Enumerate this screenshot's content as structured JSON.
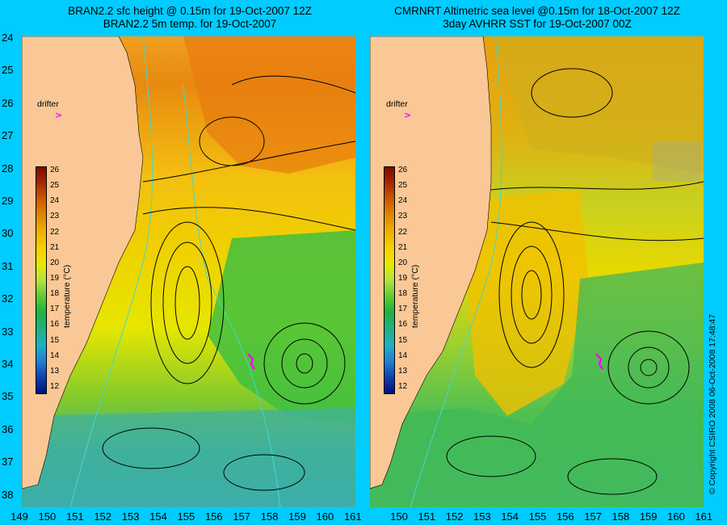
{
  "titles": {
    "left_line1": "BRAN2.2 sfc height @ 0.15m for 19-Oct-2007 12Z",
    "left_line2": "BRAN2.2 5m temp. for 19-Oct-2007",
    "right_line1": "CMRNRT Altimetric sea level  @0.15m  for 18-Oct-2007 12Z",
    "right_line2": "3day AVHRR SST for 19-Oct-2007 00Z"
  },
  "lat_ticks": [
    "24",
    "25",
    "26",
    "27",
    "28",
    "29",
    "30",
    "31",
    "32",
    "33",
    "34",
    "35",
    "36",
    "37",
    "38"
  ],
  "lon_ticks_left": [
    "149",
    "150",
    "151",
    "152",
    "153",
    "154",
    "155",
    "156",
    "157",
    "158",
    "159",
    "160",
    "161"
  ],
  "lon_ticks_right": [
    "153",
    "154",
    "155",
    "156",
    "157",
    "158",
    "159",
    "160",
    "161"
  ],
  "lon_ticks_right_prefix": [
    "150",
    "151",
    "152"
  ],
  "drifter": {
    "label": "drifter",
    "symbol": ">"
  },
  "colorbar": {
    "label": "temperature (°C)",
    "ticks": [
      "26",
      "25",
      "24",
      "23",
      "22",
      "21",
      "20",
      "19",
      "18",
      "17",
      "16",
      "15",
      "14",
      "13",
      "12"
    ],
    "colors": [
      "#7a0a00",
      "#a82a00",
      "#cc5a00",
      "#e08800",
      "#f0b000",
      "#f7d000",
      "#e8e800",
      "#b8e040",
      "#60cc30",
      "#20b040",
      "#20b080",
      "#20b0c0",
      "#2080d0",
      "#1040b0",
      "#001080"
    ]
  },
  "copyright": "© Copyright CSIRO 2008    06-Oct-2008 17:48:47",
  "colors": {
    "background": "#00ccff",
    "land": "#f9c896",
    "drifter": "#ff00ff",
    "ssh_contour": "#000000",
    "bathymetry": "#40d8d0"
  }
}
